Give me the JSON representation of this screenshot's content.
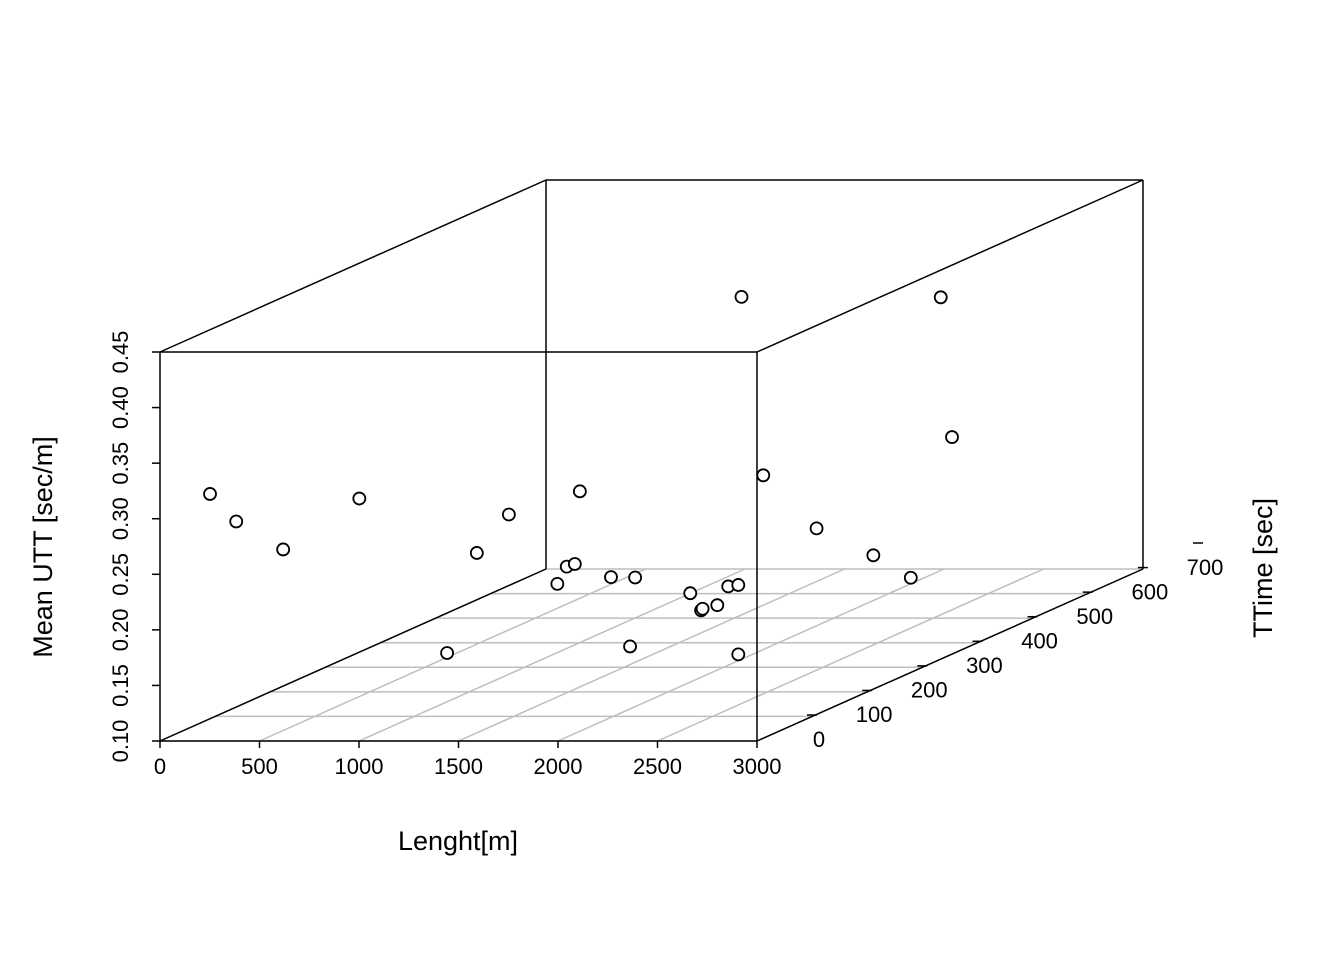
{
  "chart_data": {
    "type": "scatter3d",
    "x_label": "Lenght[m]",
    "y_label": "TTime [sec]",
    "z_label": "Mean UTT [sec/m]",
    "x": [
      135,
      214,
      364,
      561,
      1027,
      988,
      1041,
      1315,
      1318,
      1342,
      1237,
      1496,
      1584,
      1722,
      1825,
      1910,
      1912,
      1958,
      1952,
      1986,
      2180,
      1423,
      1815,
      2130,
      2418,
      2634,
      2003,
      2370
    ],
    "y": [
      42,
      61,
      92,
      159,
      150,
      218,
      257,
      246,
      262,
      268,
      315,
      278,
      290,
      231,
      303,
      292,
      294,
      304,
      326,
      332,
      262,
      541,
      439,
      422,
      421,
      411,
      693,
      581
    ],
    "z": [
      0.313,
      0.284,
      0.252,
      0.283,
      0.146,
      0.221,
      0.247,
      0.187,
      0.199,
      0.2,
      0.255,
      0.186,
      0.183,
      0.134,
      0.166,
      0.153,
      0.154,
      0.155,
      0.167,
      0.167,
      0.12,
      0.38,
      0.242,
      0.198,
      0.174,
      0.156,
      0.346,
      0.245
    ],
    "color": "#000000",
    "xlim": [
      0,
      3000
    ],
    "xticks": [
      0,
      500,
      1000,
      1500,
      2000,
      2500,
      3000
    ],
    "ylim": [
      0,
      700
    ],
    "yticks": [
      0,
      100,
      200,
      300,
      400,
      500,
      600,
      700
    ],
    "zlim": [
      0.1,
      0.45
    ],
    "zticks": [
      {
        "value": 0.1,
        "label": "0.10"
      },
      {
        "value": 0.15,
        "label": "0.15"
      },
      {
        "value": 0.2,
        "label": "0.20"
      },
      {
        "value": 0.25,
        "label": "0.25"
      },
      {
        "value": 0.3,
        "label": "0.30"
      },
      {
        "value": 0.35,
        "label": "0.35"
      },
      {
        "value": 0.4,
        "label": "0.40"
      },
      {
        "value": 0.45,
        "label": "0.45"
      }
    ],
    "grid": true
  }
}
